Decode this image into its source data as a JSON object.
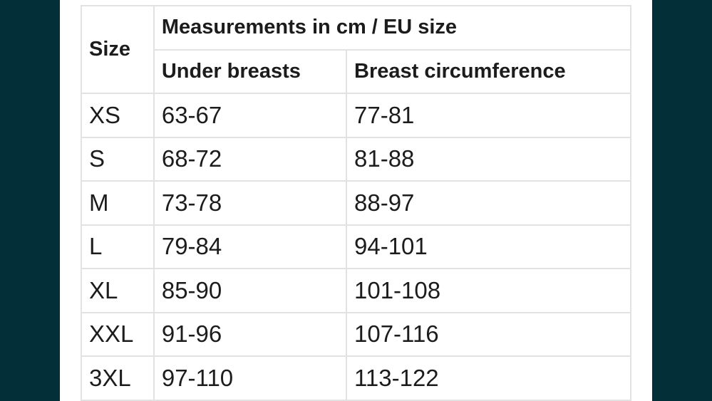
{
  "table": {
    "size_header": "Size",
    "group_header": "Measurements in cm / EU size",
    "sub_headers": [
      "Under breasts",
      "Breast circumference"
    ],
    "rows": [
      {
        "size": "XS",
        "under_breasts": "63-67",
        "breast_circumference": "77-81"
      },
      {
        "size": "S",
        "under_breasts": "68-72",
        "breast_circumference": "81-88"
      },
      {
        "size": "M",
        "under_breasts": "73-78",
        "breast_circumference": "88-97"
      },
      {
        "size": "L",
        "under_breasts": "79-84",
        "breast_circumference": "94-101"
      },
      {
        "size": "XL",
        "under_breasts": "85-90",
        "breast_circumference": "101-108"
      },
      {
        "size": "XXL",
        "under_breasts": "91-96",
        "breast_circumference": "107-116"
      },
      {
        "size": "3XL",
        "under_breasts": "97-110",
        "breast_circumference": "113-122"
      }
    ]
  }
}
